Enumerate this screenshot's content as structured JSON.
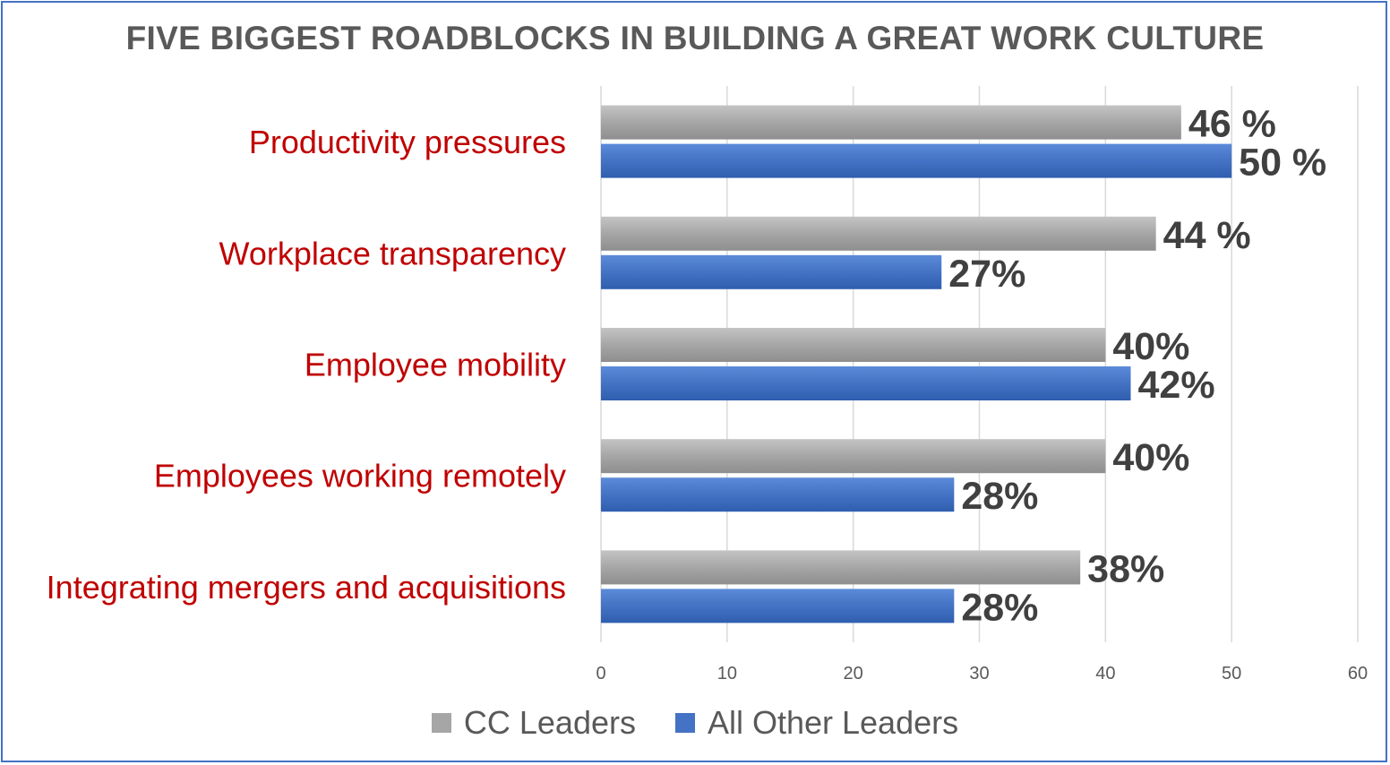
{
  "chart_data": {
    "type": "bar",
    "orientation": "horizontal",
    "title": "FIVE BIGGEST ROADBLOCKS IN BUILDING A GREAT WORK CULTURE",
    "categories": [
      "Productivity pressures",
      "Workplace transparency",
      "Employee mobility",
      "Employees working remotely",
      "Integrating mergers and acquisitions"
    ],
    "series": [
      {
        "name": "CC Leaders",
        "color": "#A6A6A6",
        "values": [
          46,
          44,
          40,
          40,
          38
        ],
        "labels": [
          "46 %",
          "44 %",
          "40%",
          "40%",
          "38%"
        ]
      },
      {
        "name": "All Other Leaders",
        "color": "#4472C4",
        "values": [
          50,
          27,
          42,
          28,
          28
        ],
        "labels": [
          "50 %",
          "27%",
          "42%",
          "28%",
          "28%"
        ]
      }
    ],
    "xlim": [
      0,
      60
    ],
    "xticks": [
      "0",
      "10",
      "20",
      "30",
      "40",
      "50",
      "60"
    ],
    "grid": true,
    "legend_position": "bottom",
    "category_label_color": "#C00000",
    "data_label_color": "#404040"
  }
}
